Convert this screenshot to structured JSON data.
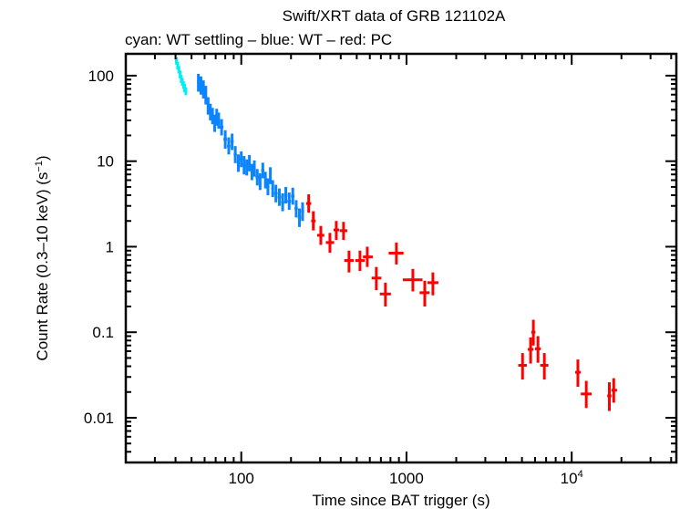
{
  "chart_data": {
    "type": "scatter",
    "title": "Swift/XRT data of GRB 121102A",
    "subtitle": "cyan: WT settling – blue: WT – red: PC",
    "xlabel": "Time since BAT trigger (s)",
    "ylabel": "Count Rate (0.3–10 keV) (s⁻¹)",
    "xscale": "log",
    "yscale": "log",
    "xlim": [
      20,
      43000
    ],
    "ylim": [
      0.003,
      180
    ],
    "grid": false,
    "legend": "none",
    "x_ticks": [
      {
        "value": 100,
        "label": "100"
      },
      {
        "value": 1000,
        "label": "1000"
      },
      {
        "value": 10000,
        "label": "10",
        "sup": "4"
      }
    ],
    "y_ticks": [
      {
        "value": 100,
        "label": "100"
      },
      {
        "value": 10,
        "label": "10"
      },
      {
        "value": 1,
        "label": "1"
      },
      {
        "value": 0.1,
        "label": "0.1"
      },
      {
        "value": 0.01,
        "label": "0.01"
      }
    ],
    "series": [
      {
        "name": "WT settling",
        "color": "#00f0f0",
        "points": [
          {
            "t": 40.5,
            "r": 150,
            "tlo": 40.2,
            "thi": 40.8,
            "rlo": 135,
            "rhi": 165
          },
          {
            "t": 41.2,
            "r": 132,
            "tlo": 40.9,
            "thi": 41.5,
            "rlo": 118,
            "rhi": 146
          },
          {
            "t": 41.9,
            "r": 118,
            "tlo": 41.6,
            "thi": 42.2,
            "rlo": 106,
            "rhi": 130
          },
          {
            "t": 42.6,
            "r": 104,
            "tlo": 42.3,
            "thi": 42.9,
            "rlo": 93,
            "rhi": 115
          },
          {
            "t": 43.3,
            "r": 92,
            "tlo": 43.0,
            "thi": 43.6,
            "rlo": 82,
            "rhi": 102
          },
          {
            "t": 44.0,
            "r": 85,
            "tlo": 43.7,
            "thi": 44.3,
            "rlo": 76,
            "rhi": 94
          },
          {
            "t": 44.7,
            "r": 78,
            "tlo": 44.4,
            "thi": 45.0,
            "rlo": 70,
            "rhi": 86
          },
          {
            "t": 45.4,
            "r": 72,
            "tlo": 45.1,
            "thi": 45.7,
            "rlo": 64,
            "rhi": 80
          },
          {
            "t": 46.2,
            "r": 66,
            "tlo": 45.8,
            "thi": 46.6,
            "rlo": 59,
            "rhi": 73
          }
        ]
      },
      {
        "name": "WT",
        "color": "#0a84ff",
        "points": [
          {
            "t": 55,
            "r": 85,
            "tlo": 54,
            "thi": 56,
            "rlo": 65,
            "rhi": 105
          },
          {
            "t": 57,
            "r": 78,
            "tlo": 56,
            "thi": 58,
            "rlo": 60,
            "rhi": 98
          },
          {
            "t": 59,
            "r": 70,
            "tlo": 58,
            "thi": 60,
            "rlo": 54,
            "rhi": 88
          },
          {
            "t": 61,
            "r": 60,
            "tlo": 60,
            "thi": 62,
            "rlo": 46,
            "rhi": 76
          },
          {
            "t": 63,
            "r": 45,
            "tlo": 62,
            "thi": 64,
            "rlo": 35,
            "rhi": 56
          },
          {
            "t": 65,
            "r": 38,
            "tlo": 64,
            "thi": 66,
            "rlo": 30,
            "rhi": 47
          },
          {
            "t": 67,
            "r": 34,
            "tlo": 66,
            "thi": 68,
            "rlo": 27,
            "rhi": 42
          },
          {
            "t": 69,
            "r": 28,
            "tlo": 68,
            "thi": 70,
            "rlo": 22,
            "rhi": 35
          },
          {
            "t": 71,
            "r": 33,
            "tlo": 70,
            "thi": 72,
            "rlo": 26,
            "rhi": 41
          },
          {
            "t": 73,
            "r": 30,
            "tlo": 72,
            "thi": 74,
            "rlo": 24,
            "rhi": 37
          },
          {
            "t": 76,
            "r": 25,
            "tlo": 74,
            "thi": 78,
            "rlo": 20,
            "rhi": 31
          },
          {
            "t": 80,
            "r": 18,
            "tlo": 78,
            "thi": 82,
            "rlo": 14,
            "rhi": 23
          },
          {
            "t": 84,
            "r": 15,
            "tlo": 82,
            "thi": 86,
            "rlo": 12,
            "rhi": 19
          },
          {
            "t": 88,
            "r": 17,
            "tlo": 86,
            "thi": 90,
            "rlo": 13.5,
            "rhi": 21
          },
          {
            "t": 92,
            "r": 12,
            "tlo": 90,
            "thi": 94,
            "rlo": 9.5,
            "rhi": 15
          },
          {
            "t": 96,
            "r": 9.5,
            "tlo": 94,
            "thi": 98,
            "rlo": 7.5,
            "rhi": 12
          },
          {
            "t": 100,
            "r": 10.5,
            "tlo": 98,
            "thi": 102,
            "rlo": 8.5,
            "rhi": 13
          },
          {
            "t": 104,
            "r": 9,
            "tlo": 102,
            "thi": 106,
            "rlo": 7,
            "rhi": 11.5
          },
          {
            "t": 108,
            "r": 8.5,
            "tlo": 106,
            "thi": 110,
            "rlo": 6.8,
            "rhi": 10.5
          },
          {
            "t": 112,
            "r": 9.5,
            "tlo": 110,
            "thi": 114,
            "rlo": 7.6,
            "rhi": 11.8
          },
          {
            "t": 116,
            "r": 7.5,
            "tlo": 114,
            "thi": 118,
            "rlo": 6,
            "rhi": 9.3
          },
          {
            "t": 120,
            "r": 8.2,
            "tlo": 118,
            "thi": 122,
            "rlo": 6.6,
            "rhi": 10.2
          },
          {
            "t": 125,
            "r": 6.5,
            "tlo": 122,
            "thi": 128,
            "rlo": 5.2,
            "rhi": 8.1
          },
          {
            "t": 130,
            "r": 5.8,
            "tlo": 128,
            "thi": 132,
            "rlo": 4.6,
            "rhi": 7.2
          },
          {
            "t": 135,
            "r": 7.8,
            "tlo": 132,
            "thi": 138,
            "rlo": 6.3,
            "rhi": 9.6
          },
          {
            "t": 140,
            "r": 6.0,
            "tlo": 138,
            "thi": 142,
            "rlo": 4.8,
            "rhi": 7.5
          },
          {
            "t": 145,
            "r": 5.0,
            "tlo": 142,
            "thi": 148,
            "rlo": 4.0,
            "rhi": 6.3
          },
          {
            "t": 150,
            "r": 6.8,
            "tlo": 148,
            "thi": 152,
            "rlo": 5.4,
            "rhi": 8.5
          },
          {
            "t": 155,
            "r": 4.8,
            "tlo": 152,
            "thi": 158,
            "rlo": 3.8,
            "rhi": 6.0
          },
          {
            "t": 162,
            "r": 4.2,
            "tlo": 158,
            "thi": 166,
            "rlo": 3.3,
            "rhi": 5.3
          },
          {
            "t": 170,
            "r": 3.8,
            "tlo": 166,
            "thi": 174,
            "rlo": 3.0,
            "rhi": 4.8
          },
          {
            "t": 178,
            "r": 3.3,
            "tlo": 174,
            "thi": 182,
            "rlo": 2.6,
            "rhi": 4.2
          },
          {
            "t": 186,
            "r": 4.0,
            "tlo": 182,
            "thi": 190,
            "rlo": 3.2,
            "rhi": 5.0
          },
          {
            "t": 195,
            "r": 3.4,
            "tlo": 190,
            "thi": 200,
            "rlo": 2.7,
            "rhi": 4.3
          },
          {
            "t": 205,
            "r": 3.9,
            "tlo": 200,
            "thi": 210,
            "rlo": 3.1,
            "rhi": 4.9
          },
          {
            "t": 215,
            "r": 2.8,
            "tlo": 210,
            "thi": 220,
            "rlo": 2.2,
            "rhi": 3.5
          },
          {
            "t": 225,
            "r": 2.2,
            "tlo": 220,
            "thi": 230,
            "rlo": 1.7,
            "rhi": 2.8
          },
          {
            "t": 235,
            "r": 2.6,
            "tlo": 230,
            "thi": 240,
            "rlo": 2.0,
            "rhi": 3.3
          }
        ]
      },
      {
        "name": "PC",
        "color": "#ff0000",
        "points": [
          {
            "t": 256,
            "r": 3.2,
            "tlo": 247,
            "thi": 265,
            "rlo": 2.5,
            "rhi": 4.1
          },
          {
            "t": 273,
            "r": 2.0,
            "tlo": 265,
            "thi": 282,
            "rlo": 1.55,
            "rhi": 2.6
          },
          {
            "t": 303,
            "r": 1.36,
            "tlo": 288,
            "thi": 318,
            "rlo": 1.05,
            "rhi": 1.75
          },
          {
            "t": 344,
            "r": 1.12,
            "tlo": 325,
            "thi": 365,
            "rlo": 0.85,
            "rhi": 1.45
          },
          {
            "t": 376,
            "r": 1.57,
            "tlo": 362,
            "thi": 392,
            "rlo": 1.2,
            "rhi": 2.0
          },
          {
            "t": 416,
            "r": 1.54,
            "tlo": 395,
            "thi": 438,
            "rlo": 1.2,
            "rhi": 1.95
          },
          {
            "t": 449,
            "r": 0.69,
            "tlo": 420,
            "thi": 480,
            "rlo": 0.5,
            "rhi": 0.9
          },
          {
            "t": 523,
            "r": 0.69,
            "tlo": 490,
            "thi": 560,
            "rlo": 0.52,
            "rhi": 0.9
          },
          {
            "t": 579,
            "r": 0.76,
            "tlo": 545,
            "thi": 625,
            "rlo": 0.58,
            "rhi": 1.0
          },
          {
            "t": 657,
            "r": 0.43,
            "tlo": 615,
            "thi": 705,
            "rlo": 0.31,
            "rhi": 0.58
          },
          {
            "t": 746,
            "r": 0.28,
            "tlo": 690,
            "thi": 805,
            "rlo": 0.2,
            "rhi": 0.38
          },
          {
            "t": 869,
            "r": 0.84,
            "tlo": 780,
            "thi": 960,
            "rlo": 0.62,
            "rhi": 1.12
          },
          {
            "t": 1093,
            "r": 0.41,
            "tlo": 950,
            "thi": 1250,
            "rlo": 0.3,
            "rhi": 0.55
          },
          {
            "t": 1290,
            "r": 0.29,
            "tlo": 1200,
            "thi": 1380,
            "rlo": 0.2,
            "rhi": 0.4
          },
          {
            "t": 1445,
            "r": 0.38,
            "tlo": 1340,
            "thi": 1560,
            "rlo": 0.27,
            "rhi": 0.5
          },
          {
            "t": 5040,
            "r": 0.041,
            "tlo": 4750,
            "thi": 5350,
            "rlo": 0.028,
            "rhi": 0.057
          },
          {
            "t": 5640,
            "r": 0.063,
            "tlo": 5420,
            "thi": 5870,
            "rlo": 0.043,
            "rhi": 0.087
          },
          {
            "t": 5860,
            "r": 0.1,
            "tlo": 5700,
            "thi": 6030,
            "rlo": 0.07,
            "rhi": 0.14
          },
          {
            "t": 6250,
            "r": 0.064,
            "tlo": 6000,
            "thi": 6500,
            "rlo": 0.044,
            "rhi": 0.09
          },
          {
            "t": 6830,
            "r": 0.041,
            "tlo": 6450,
            "thi": 7230,
            "rlo": 0.028,
            "rhi": 0.057
          },
          {
            "t": 10900,
            "r": 0.034,
            "tlo": 10500,
            "thi": 11350,
            "rlo": 0.023,
            "rhi": 0.048
          },
          {
            "t": 12250,
            "r": 0.019,
            "tlo": 11350,
            "thi": 13200,
            "rlo": 0.013,
            "rhi": 0.027
          },
          {
            "t": 16900,
            "r": 0.018,
            "tlo": 16400,
            "thi": 17400,
            "rlo": 0.012,
            "rhi": 0.026
          },
          {
            "t": 17960,
            "r": 0.021,
            "tlo": 17400,
            "thi": 18800,
            "rlo": 0.015,
            "rhi": 0.029
          }
        ]
      }
    ]
  }
}
